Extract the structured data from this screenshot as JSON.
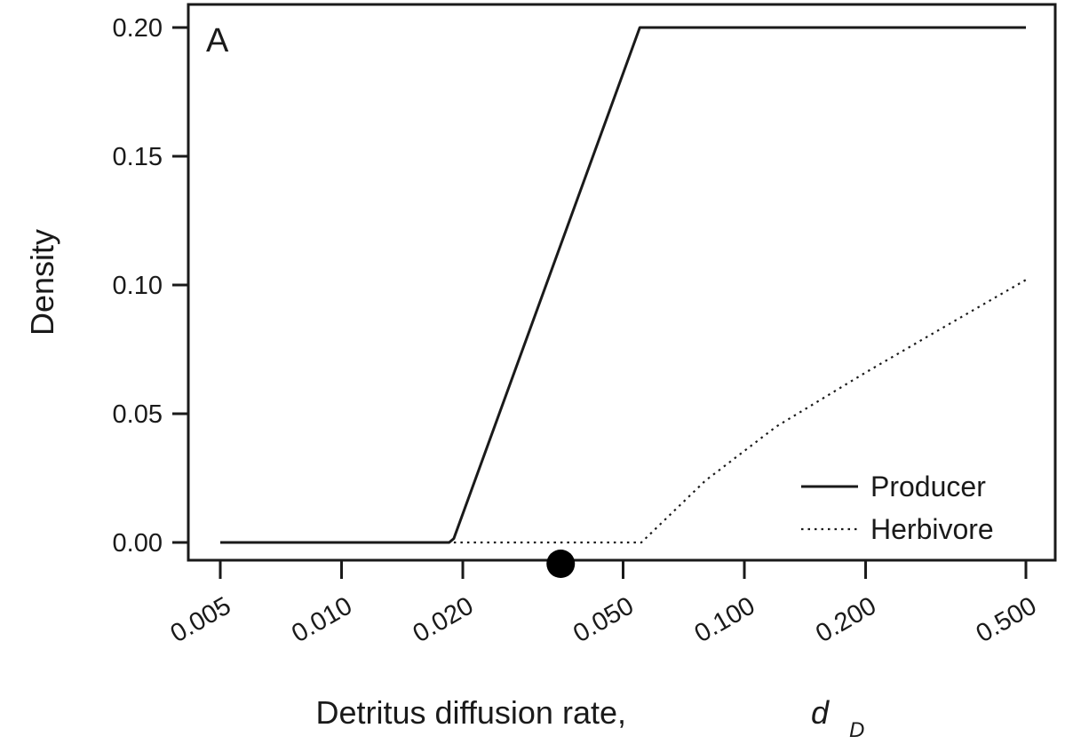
{
  "chart_data": {
    "type": "line",
    "panel_label": "A",
    "title": "",
    "xlabel": "Detritus diffusion rate,",
    "xlabel_symbol": "d",
    "xlabel_subscript": "D",
    "ylabel": "Density",
    "x_scale": "log",
    "xlim": [
      0.005,
      0.5
    ],
    "ylim": [
      0.0,
      0.2
    ],
    "x_ticks": [
      0.005,
      0.01,
      0.02,
      0.05,
      0.1,
      0.2,
      0.5
    ],
    "x_tick_labels": [
      "0.005",
      "0.010",
      "0.020",
      "0.050",
      "0.100",
      "0.200",
      "0.500"
    ],
    "y_ticks": [
      0.0,
      0.05,
      0.1,
      0.15,
      0.2
    ],
    "y_tick_labels": [
      "0.00",
      "0.05",
      "0.10",
      "0.15",
      "0.20"
    ],
    "grid": false,
    "legend_position": "bottom-right",
    "series": [
      {
        "name": "Producer",
        "style": "solid",
        "color": "#1a1a1a",
        "x": [
          0.005,
          0.0185,
          0.019,
          0.055,
          0.5
        ],
        "y": [
          0.0,
          0.0,
          0.0015,
          0.2,
          0.2
        ]
      },
      {
        "name": "Herbivore",
        "style": "dotted",
        "color": "#1a1a1a",
        "x": [
          0.019,
          0.0555,
          0.08,
          0.12,
          0.2,
          0.3,
          0.5
        ],
        "y": [
          0.0,
          0.0,
          0.024,
          0.045,
          0.066,
          0.082,
          0.102
        ]
      }
    ],
    "marker": {
      "x": 0.035,
      "color": "#000000"
    }
  }
}
